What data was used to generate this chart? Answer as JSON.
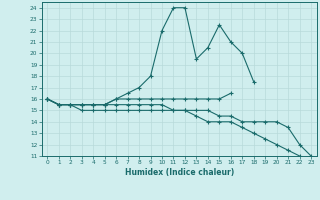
{
  "xlabel": "Humidex (Indice chaleur)",
  "x": [
    0,
    1,
    2,
    3,
    4,
    5,
    6,
    7,
    8,
    9,
    10,
    11,
    12,
    13,
    14,
    15,
    16,
    17,
    18,
    19,
    20,
    21,
    22,
    23
  ],
  "line1": [
    16,
    15.5,
    15.5,
    15.5,
    15.5,
    15.5,
    16,
    16.5,
    17,
    18,
    22,
    24,
    24,
    19.5,
    20.5,
    22.5,
    21,
    20,
    17.5,
    null,
    null,
    null,
    null,
    null
  ],
  "line2": [
    16,
    15.5,
    15.5,
    15.5,
    15.5,
    15.5,
    16,
    16,
    16,
    16,
    16,
    16,
    16,
    16,
    16,
    16,
    16.5,
    null,
    null,
    null,
    null,
    null,
    null,
    null
  ],
  "line3": [
    16,
    15.5,
    15.5,
    15.5,
    15.5,
    15.5,
    15.5,
    15.5,
    15.5,
    15.5,
    15.5,
    15,
    15,
    15,
    15,
    14.5,
    14.5,
    14,
    14,
    14,
    14,
    13.5,
    12,
    11
  ],
  "line4": [
    16,
    15.5,
    15.5,
    15,
    15,
    15,
    15,
    15,
    15,
    15,
    15,
    15,
    15,
    14.5,
    14,
    14,
    14,
    13.5,
    13,
    12.5,
    12,
    11.5,
    11,
    null
  ],
  "color": "#1a6b6b",
  "bg_color": "#d0eeee",
  "grid_color": "#b8dada",
  "ylim": [
    11,
    24.5
  ],
  "xlim": [
    -0.5,
    23.5
  ],
  "yticks": [
    11,
    12,
    13,
    14,
    15,
    16,
    17,
    18,
    19,
    20,
    21,
    22,
    23,
    24
  ],
  "xticks": [
    0,
    1,
    2,
    3,
    4,
    5,
    6,
    7,
    8,
    9,
    10,
    11,
    12,
    13,
    14,
    15,
    16,
    17,
    18,
    19,
    20,
    21,
    22,
    23
  ]
}
